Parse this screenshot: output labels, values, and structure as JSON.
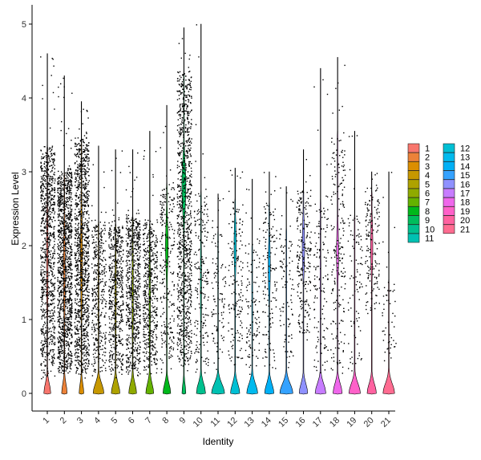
{
  "chart_data": {
    "type": "violin",
    "xlabel": "Identity",
    "ylabel": "Expression Level",
    "ylim": [
      -0.2,
      5.3
    ],
    "yticks": [
      0,
      1,
      2,
      3,
      4,
      5
    ],
    "grid": false,
    "legend_position": "right",
    "categories": [
      "1",
      "2",
      "3",
      "4",
      "5",
      "6",
      "7",
      "8",
      "9",
      "10",
      "11",
      "12",
      "13",
      "14",
      "15",
      "16",
      "17",
      "18",
      "19",
      "20",
      "21"
    ],
    "colors": [
      "#F8766D",
      "#EC8239",
      "#DB8E00",
      "#C79800",
      "#AEA200",
      "#8FAA00",
      "#64B200",
      "#00B81B",
      "#00BD5C",
      "#00C08E",
      "#00C1B2",
      "#00BFD4",
      "#00BAEE",
      "#00B0F6",
      "#35A2FF",
      "#8F91FF",
      "#C77CFF",
      "#EF67EB",
      "#FF61C9",
      "#FF62A0",
      "#FF6C91"
    ],
    "series": [
      {
        "name": "1",
        "max": 4.6,
        "upper": 3.3,
        "lower": 0.3,
        "zero_frac": 0.45,
        "density": 900,
        "peak": null
      },
      {
        "name": "2",
        "max": 4.3,
        "upper": 3.0,
        "lower": 0.3,
        "zero_frac": 0.35,
        "density": 1200,
        "peak": null
      },
      {
        "name": "3",
        "max": 3.95,
        "upper": 3.4,
        "lower": 0.3,
        "zero_frac": 0.3,
        "density": 1100,
        "peak": null
      },
      {
        "name": "4",
        "max": 3.35,
        "upper": 2.3,
        "lower": 0.3,
        "zero_frac": 0.7,
        "density": 380,
        "peak": null
      },
      {
        "name": "5",
        "max": 3.3,
        "upper": 2.3,
        "lower": 0.3,
        "zero_frac": 0.55,
        "density": 550,
        "peak": null
      },
      {
        "name": "6",
        "max": 3.3,
        "upper": 2.4,
        "lower": 0.3,
        "zero_frac": 0.5,
        "density": 650,
        "peak": null
      },
      {
        "name": "7",
        "max": 3.55,
        "upper": 2.3,
        "lower": 0.3,
        "zero_frac": 0.5,
        "density": 500,
        "peak": null
      },
      {
        "name": "8",
        "max": 3.9,
        "upper": 2.8,
        "lower": 0.3,
        "zero_frac": 0.5,
        "density": 240,
        "peak": 2.0
      },
      {
        "name": "9",
        "max": 4.95,
        "upper": 4.3,
        "lower": 0.4,
        "zero_frac": 0.25,
        "density": 950,
        "peak": 2.8
      },
      {
        "name": "10",
        "max": 5.0,
        "upper": 2.7,
        "lower": 0.3,
        "zero_frac": 0.6,
        "density": 200,
        "peak": null
      },
      {
        "name": "11",
        "max": 2.7,
        "upper": 2.2,
        "lower": 0.4,
        "zero_frac": 0.85,
        "density": 100,
        "peak": null
      },
      {
        "name": "12",
        "max": 3.05,
        "upper": 2.6,
        "lower": 0.4,
        "zero_frac": 0.6,
        "density": 160,
        "peak": 2.0
      },
      {
        "name": "13",
        "max": 2.9,
        "upper": 2.0,
        "lower": 0.3,
        "zero_frac": 0.7,
        "density": 110,
        "peak": null
      },
      {
        "name": "14",
        "max": 3.0,
        "upper": 2.55,
        "lower": 0.4,
        "zero_frac": 0.6,
        "density": 140,
        "peak": 1.7
      },
      {
        "name": "15",
        "max": 2.8,
        "upper": 2.2,
        "lower": 0.4,
        "zero_frac": 0.85,
        "density": 90,
        "peak": null
      },
      {
        "name": "16",
        "max": 3.3,
        "upper": 2.7,
        "lower": 0.8,
        "zero_frac": 0.55,
        "density": 220,
        "peak": 2.0
      },
      {
        "name": "17",
        "max": 4.4,
        "upper": 2.6,
        "lower": 0.3,
        "zero_frac": 0.7,
        "density": 130,
        "peak": null
      },
      {
        "name": "18",
        "max": 4.55,
        "upper": 3.5,
        "lower": 0.3,
        "zero_frac": 0.6,
        "density": 200,
        "peak": 1.9
      },
      {
        "name": "19",
        "max": 3.55,
        "upper": 2.4,
        "lower": 0.3,
        "zero_frac": 0.75,
        "density": 90,
        "peak": null
      },
      {
        "name": "20",
        "max": 3.0,
        "upper": 2.7,
        "lower": 1.1,
        "zero_frac": 0.6,
        "density": 150,
        "peak": 2.0
      },
      {
        "name": "21",
        "max": 3.0,
        "upper": 1.5,
        "lower": 0.5,
        "zero_frac": 0.75,
        "density": 45,
        "peak": null
      }
    ]
  }
}
